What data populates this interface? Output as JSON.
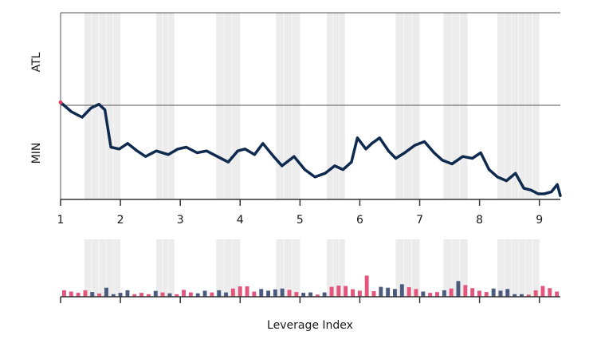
{
  "chart_data": {
    "type": "line",
    "xlabel": "Leverage Index",
    "top_panel": {
      "y_band_labels": [
        "ATL",
        "MIN"
      ],
      "x_ticks": [
        1,
        2,
        3,
        4,
        5,
        6,
        7,
        8,
        9
      ],
      "x_range": [
        1,
        9.35
      ],
      "y_range": [
        0,
        1
      ],
      "reference_level": 0.5,
      "line_color": "#0f2a4f",
      "start_marker_color": "#d9486b",
      "series": [
        {
          "x": [
            1.0,
            1.18,
            1.36,
            1.51,
            1.64,
            1.74,
            1.84,
            1.98,
            2.12,
            2.28,
            2.42,
            2.6,
            2.8,
            2.96,
            3.1,
            3.28,
            3.44,
            3.62,
            3.8,
            3.96,
            4.08,
            4.24,
            4.38,
            4.56,
            4.7,
            4.9,
            5.08,
            5.25,
            5.42,
            5.58,
            5.72,
            5.86,
            5.96,
            6.1,
            6.2,
            6.33,
            6.48,
            6.6,
            6.75,
            6.92,
            7.08,
            7.24,
            7.38,
            7.54,
            7.72,
            7.88,
            8.02,
            8.16,
            8.3,
            8.45,
            8.6,
            8.74,
            8.86,
            8.98,
            9.08,
            9.2,
            9.3,
            9.35
          ],
          "y": [
            0.52,
            0.47,
            0.44,
            0.49,
            0.51,
            0.48,
            0.28,
            0.27,
            0.3,
            0.26,
            0.23,
            0.26,
            0.24,
            0.27,
            0.28,
            0.25,
            0.26,
            0.23,
            0.2,
            0.26,
            0.27,
            0.24,
            0.3,
            0.23,
            0.18,
            0.23,
            0.16,
            0.12,
            0.14,
            0.18,
            0.16,
            0.2,
            0.33,
            0.27,
            0.3,
            0.33,
            0.26,
            0.22,
            0.25,
            0.29,
            0.31,
            0.25,
            0.21,
            0.19,
            0.23,
            0.22,
            0.25,
            0.16,
            0.12,
            0.1,
            0.14,
            0.06,
            0.05,
            0.03,
            0.03,
            0.04,
            0.08,
            0.02
          ]
        }
      ]
    },
    "bottom_panel": {
      "type": "bar",
      "colors": {
        "pink": "#e3557b",
        "navy": "#4a5b7f"
      },
      "values": [
        0.3,
        0.24,
        0.18,
        0.3,
        0.22,
        0.15,
        0.42,
        0.12,
        0.18,
        0.3,
        0.12,
        0.18,
        0.12,
        0.27,
        0.2,
        0.16,
        0.12,
        0.32,
        0.2,
        0.16,
        0.28,
        0.2,
        0.3,
        0.2,
        0.38,
        0.48,
        0.48,
        0.24,
        0.36,
        0.28,
        0.34,
        0.38,
        0.32,
        0.22,
        0.18,
        0.2,
        0.1,
        0.2,
        0.46,
        0.52,
        0.5,
        0.35,
        0.28,
        0.98,
        0.26,
        0.46,
        0.42,
        0.36,
        0.58,
        0.44,
        0.36,
        0.24,
        0.18,
        0.22,
        0.3,
        0.38,
        0.73,
        0.54,
        0.4,
        0.28,
        0.22,
        0.38,
        0.28,
        0.36,
        0.12,
        0.12,
        0.1,
        0.3,
        0.5,
        0.4,
        0.24
      ],
      "series_index": [
        0,
        0,
        0,
        0,
        1,
        0,
        1,
        1,
        1,
        1,
        0,
        0,
        0,
        1,
        0,
        1,
        0,
        0,
        0,
        1,
        1,
        0,
        1,
        1,
        0,
        0,
        0,
        0,
        1,
        1,
        1,
        1,
        0,
        0,
        1,
        1,
        0,
        1,
        0,
        0,
        0,
        0,
        0,
        0,
        0,
        1,
        1,
        1,
        1,
        0,
        0,
        1,
        0,
        0,
        1,
        0,
        1,
        0,
        0,
        0,
        0,
        1,
        1,
        1,
        1,
        1,
        0,
        0,
        0,
        0,
        0
      ]
    },
    "shaded_x_ranges": [
      [
        1.4,
        2.0
      ],
      [
        2.6,
        2.9
      ],
      [
        3.6,
        4.0
      ],
      [
        4.6,
        5.0
      ],
      [
        5.45,
        5.75
      ],
      [
        6.6,
        7.0
      ],
      [
        7.4,
        7.8
      ],
      [
        8.3,
        9.0
      ]
    ],
    "grid": false
  }
}
